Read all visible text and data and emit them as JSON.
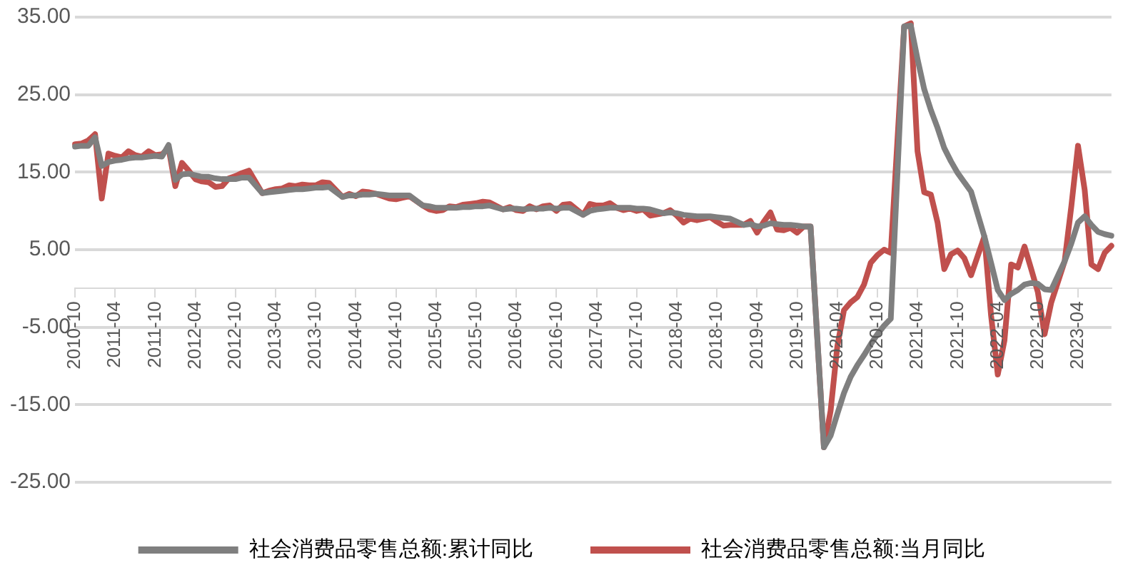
{
  "chart_data": {
    "type": "line",
    "categories": [
      "2010-10",
      null,
      null,
      null,
      null,
      null,
      "2011-04",
      null,
      null,
      null,
      null,
      null,
      "2011-10",
      null,
      null,
      null,
      null,
      null,
      "2012-04",
      null,
      null,
      null,
      null,
      null,
      "2012-10",
      null,
      null,
      null,
      null,
      null,
      "2013-04",
      null,
      null,
      null,
      null,
      null,
      "2013-10",
      null,
      null,
      null,
      null,
      null,
      "2014-04",
      null,
      null,
      null,
      null,
      null,
      "2014-10",
      null,
      null,
      null,
      null,
      null,
      "2015-04",
      null,
      null,
      null,
      null,
      null,
      "2015-10",
      null,
      null,
      null,
      null,
      null,
      "2016-04",
      null,
      null,
      null,
      null,
      null,
      "2016-10",
      null,
      null,
      null,
      null,
      null,
      "2017-04",
      null,
      null,
      null,
      null,
      null,
      "2017-10",
      null,
      null,
      null,
      null,
      null,
      "2018-04",
      null,
      null,
      null,
      null,
      null,
      "2018-10",
      null,
      null,
      null,
      null,
      null,
      "2019-04",
      null,
      null,
      null,
      null,
      null,
      "2019-10",
      null,
      null,
      null,
      null,
      null,
      "2020-04",
      null,
      null,
      null,
      null,
      null,
      "2020-10",
      null,
      null,
      null,
      null,
      null,
      "2021-04",
      null,
      null,
      null,
      null,
      null,
      "2021-10",
      null,
      null,
      null,
      null,
      null,
      "2022-04",
      null,
      null,
      null,
      null,
      null,
      "2022-10",
      null,
      null,
      null,
      null,
      null,
      "2023-04",
      null,
      null,
      null,
      null,
      null
    ],
    "series": [
      {
        "name": "社会消费品零售总额:累计同比",
        "color": "#7f7f7f",
        "values": [
          18.3,
          18.4,
          18.4,
          19.5,
          15.8,
          16.3,
          16.5,
          16.6,
          16.8,
          16.9,
          16.9,
          17.0,
          17.1,
          17.0,
          18.5,
          14.0,
          14.7,
          14.8,
          14.6,
          14.4,
          14.4,
          14.2,
          14.1,
          14.1,
          14.1,
          14.3,
          14.3,
          null,
          12.3,
          12.4,
          12.5,
          12.6,
          12.7,
          12.8,
          12.8,
          12.9,
          13.0,
          13.0,
          13.1,
          null,
          11.8,
          12.0,
          12.0,
          12.1,
          12.1,
          12.2,
          12.1,
          12.0,
          12.0,
          12.0,
          12.0,
          null,
          10.7,
          10.6,
          10.4,
          10.4,
          10.4,
          10.4,
          10.5,
          10.5,
          10.6,
          10.6,
          10.7,
          null,
          10.2,
          10.3,
          10.3,
          10.2,
          10.3,
          10.3,
          10.3,
          10.4,
          10.3,
          10.4,
          10.4,
          null,
          9.5,
          10.0,
          10.2,
          10.3,
          10.4,
          10.4,
          10.4,
          10.4,
          10.3,
          10.3,
          10.2,
          null,
          9.7,
          9.8,
          9.7,
          9.5,
          9.4,
          9.3,
          9.3,
          9.3,
          9.2,
          9.1,
          9.0,
          null,
          8.2,
          8.3,
          8.0,
          8.1,
          8.4,
          8.3,
          8.2,
          8.2,
          8.1,
          8.0,
          8.0,
          null,
          -20.5,
          -19.0,
          -16.2,
          -13.5,
          -11.4,
          -9.9,
          -8.6,
          -7.2,
          -5.9,
          -4.8,
          -3.9,
          null,
          33.8,
          33.9,
          29.6,
          25.7,
          23.0,
          20.7,
          18.1,
          16.4,
          14.9,
          13.7,
          12.5,
          null,
          6.7,
          3.3,
          -0.2,
          -1.5,
          -0.7,
          -0.2,
          0.5,
          0.7,
          0.6,
          -0.1,
          -0.2,
          null,
          3.5,
          5.8,
          8.5,
          9.3,
          8.2,
          7.3,
          7.0,
          6.8
        ]
      },
      {
        "name": "社会消费品零售总额:当月同比",
        "color": "#c0504d",
        "values": [
          18.6,
          18.7,
          19.1,
          19.9,
          11.6,
          17.4,
          17.1,
          16.9,
          17.7,
          17.2,
          17.0,
          17.7,
          17.2,
          17.3,
          18.1,
          13.2,
          16.2,
          15.2,
          14.1,
          13.8,
          13.7,
          13.1,
          13.2,
          14.2,
          14.5,
          14.9,
          15.2,
          null,
          12.3,
          12.6,
          12.8,
          12.9,
          13.3,
          13.2,
          13.4,
          13.3,
          13.3,
          13.7,
          13.6,
          null,
          11.8,
          12.2,
          11.9,
          12.5,
          12.4,
          12.2,
          11.9,
          11.6,
          11.5,
          11.7,
          11.9,
          null,
          10.7,
          10.2,
          10.0,
          10.1,
          10.6,
          10.5,
          10.8,
          10.9,
          11.0,
          11.2,
          11.1,
          null,
          10.2,
          10.5,
          10.1,
          10.0,
          10.6,
          10.2,
          10.6,
          10.7,
          10.0,
          10.8,
          10.9,
          null,
          9.5,
          10.9,
          10.7,
          10.7,
          11.0,
          10.4,
          10.1,
          10.3,
          10.0,
          10.2,
          9.4,
          null,
          9.7,
          10.1,
          9.4,
          8.5,
          9.0,
          8.8,
          9.0,
          9.2,
          8.6,
          8.1,
          8.2,
          null,
          8.2,
          8.7,
          7.2,
          8.6,
          9.8,
          7.6,
          7.5,
          7.8,
          7.2,
          8.0,
          8.0,
          null,
          -20.5,
          -15.8,
          -7.5,
          -2.8,
          -1.8,
          -1.1,
          0.5,
          3.3,
          4.3,
          5.0,
          4.6,
          null,
          33.8,
          34.2,
          17.7,
          12.4,
          12.1,
          8.5,
          2.5,
          4.4,
          4.9,
          3.9,
          1.7,
          null,
          6.7,
          -3.5,
          -11.1,
          -6.7,
          3.1,
          2.7,
          5.4,
          2.5,
          -0.5,
          -5.9,
          -1.8,
          null,
          3.5,
          10.6,
          18.4,
          12.7,
          3.1,
          2.5,
          4.6,
          5.5
        ]
      }
    ],
    "ylim": [
      -25,
      35
    ],
    "yticks": [
      {
        "value": -25,
        "label": "-25.00"
      },
      {
        "value": -15,
        "label": "-15.00"
      },
      {
        "value": -5,
        "label": "-5.00"
      },
      {
        "value": 5,
        "label": "5.00"
      },
      {
        "value": 15,
        "label": "15.00"
      },
      {
        "value": 25,
        "label": "25.00"
      },
      {
        "value": 35,
        "label": "35.00"
      }
    ],
    "grid": "y",
    "legend": "bottom",
    "marker": "none",
    "line_style": "solid"
  }
}
